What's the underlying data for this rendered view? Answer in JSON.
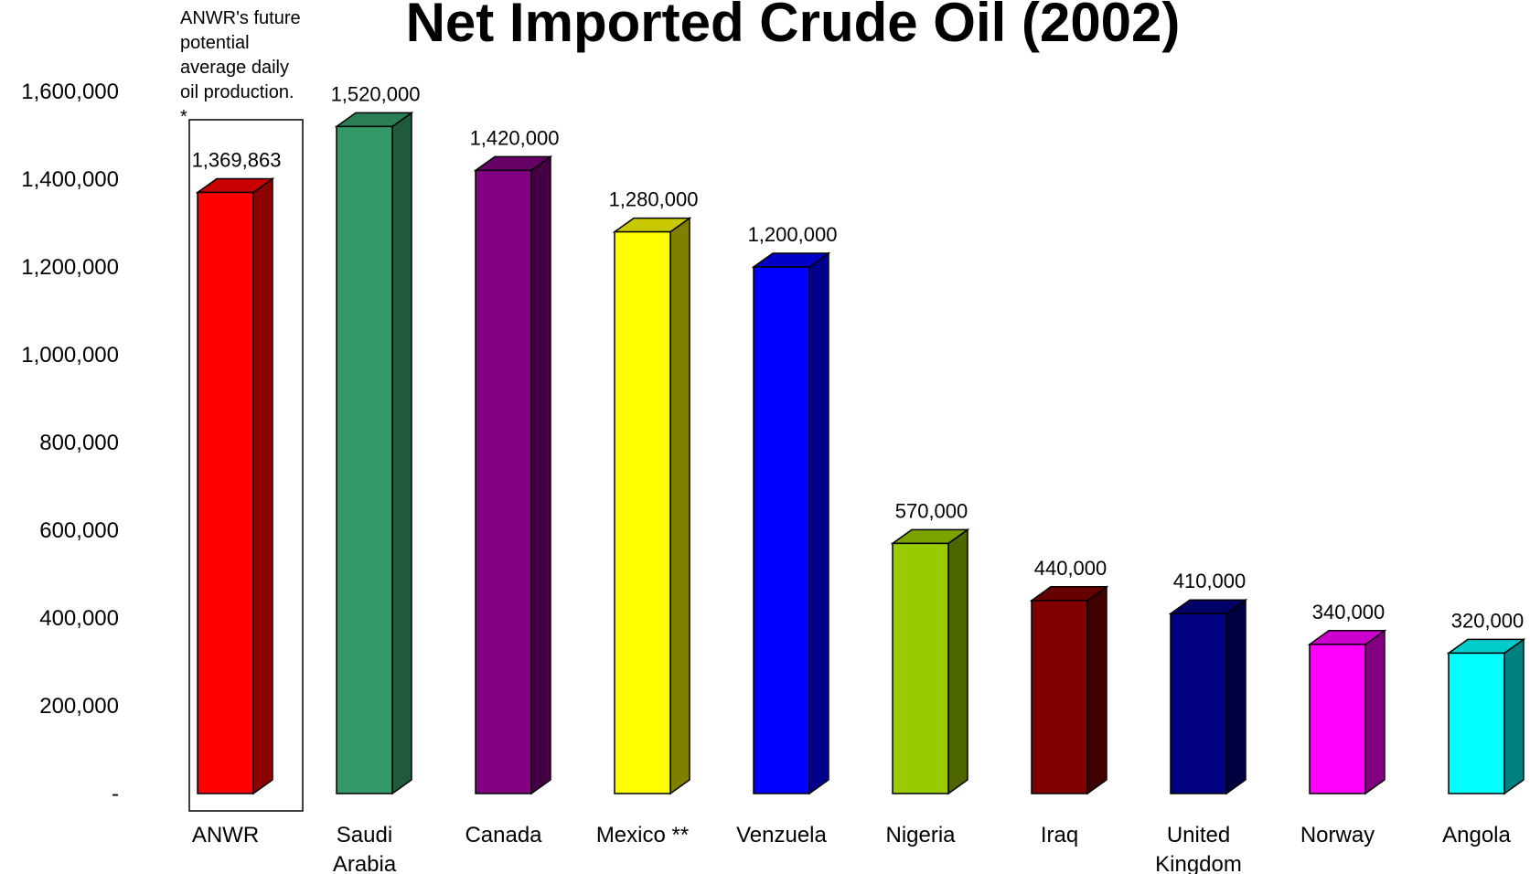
{
  "chart_data": {
    "type": "bar",
    "title": "Net Imported Crude Oil (2002)",
    "xlabel": "",
    "ylabel": "",
    "ylim": [
      0,
      1600000
    ],
    "yticks": [
      {
        "value": 0,
        "label": "-"
      },
      {
        "value": 200000,
        "label": "200,000"
      },
      {
        "value": 400000,
        "label": "400,000"
      },
      {
        "value": 600000,
        "label": "600,000"
      },
      {
        "value": 800000,
        "label": "800,000"
      },
      {
        "value": 1000000,
        "label": "1,000,000"
      },
      {
        "value": 1200000,
        "label": "1,200,000"
      },
      {
        "value": 1400000,
        "label": "1,400,000"
      },
      {
        "value": 1600000,
        "label": "1,600,000"
      }
    ],
    "grid": false,
    "legend": "none",
    "bars": [
      {
        "category": [
          "ANWR"
        ],
        "value": 1369863,
        "label": "1,369,863",
        "color": "#ff0000",
        "side": "#8b0000",
        "top": "#c80000"
      },
      {
        "category": [
          "Saudi",
          "Arabia"
        ],
        "value": 1520000,
        "label": "1,520,000",
        "color": "#339966",
        "side": "#1f5a3c",
        "top": "#2a7f55"
      },
      {
        "category": [
          "Canada"
        ],
        "value": 1420000,
        "label": "1,420,000",
        "color": "#800080",
        "side": "#420042",
        "top": "#660066"
      },
      {
        "category": [
          "Mexico **"
        ],
        "value": 1280000,
        "label": "1,280,000",
        "color": "#ffff00",
        "side": "#808000",
        "top": "#c8c800"
      },
      {
        "category": [
          "Venzuela"
        ],
        "value": 1200000,
        "label": "1,200,000",
        "color": "#0000ff",
        "side": "#00008b",
        "top": "#0000c8"
      },
      {
        "category": [
          "Nigeria"
        ],
        "value": 570000,
        "label": "570,000",
        "color": "#99cc00",
        "side": "#4d6600",
        "top": "#7aa300"
      },
      {
        "category": [
          "Iraq"
        ],
        "value": 440000,
        "label": "440,000",
        "color": "#800000",
        "side": "#400000",
        "top": "#660000"
      },
      {
        "category": [
          "United",
          "Kingdom"
        ],
        "value": 410000,
        "label": "410,000",
        "color": "#000080",
        "side": "#000040",
        "top": "#000066"
      },
      {
        "category": [
          "Norway"
        ],
        "value": 340000,
        "label": "340,000",
        "color": "#ff00ff",
        "side": "#800080",
        "top": "#cc00cc"
      },
      {
        "category": [
          "Angola"
        ],
        "value": 320000,
        "label": "320,000",
        "color": "#00ffff",
        "side": "#008080",
        "top": "#00cccc"
      }
    ],
    "annotation": {
      "lines": [
        "ANWR's future",
        "potential",
        "average daily",
        "oil production.",
        "*"
      ]
    }
  }
}
